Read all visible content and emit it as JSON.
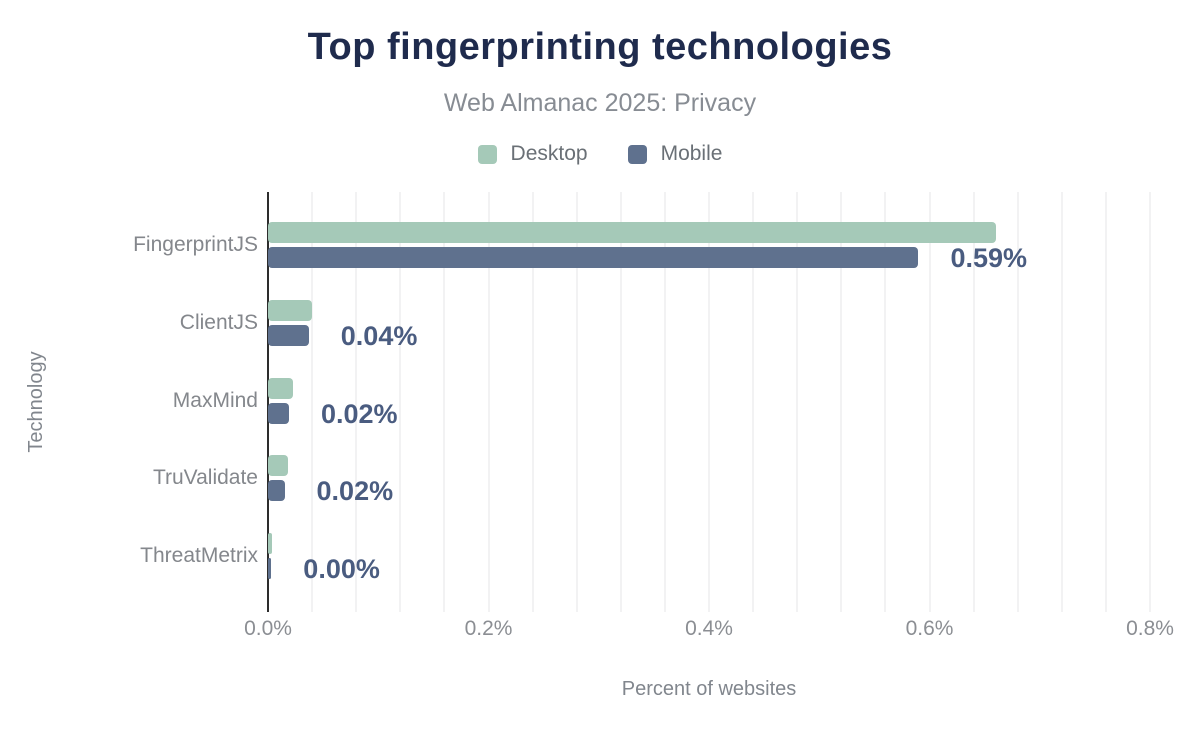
{
  "chart_data": {
    "type": "bar",
    "orientation": "horizontal",
    "title": "Top fingerprinting technologies",
    "subtitle": "Web Almanac 2025: Privacy",
    "xlabel": "Percent of websites",
    "ylabel": "Technology",
    "categories": [
      "FingerprintJS",
      "ClientJS",
      "MaxMind",
      "TruValidate",
      "ThreatMetrix"
    ],
    "series": [
      {
        "name": "Desktop",
        "color": "#a5c9b8",
        "values": [
          0.66,
          0.04,
          0.023,
          0.018,
          0.004
        ]
      },
      {
        "name": "Mobile",
        "color": "#5f718e",
        "values": [
          0.59,
          0.037,
          0.019,
          0.015,
          0.003
        ]
      }
    ],
    "value_labels": [
      "0.59%",
      "0.04%",
      "0.02%",
      "0.02%",
      "0.00%"
    ],
    "xlim": [
      0,
      0.8
    ],
    "xticks": [
      "0.0%",
      "0.2%",
      "0.4%",
      "0.6%",
      "0.8%"
    ],
    "xtick_values": [
      0,
      0.2,
      0.4,
      0.6,
      0.8
    ],
    "grid": true,
    "legend_position": "top",
    "colors": {
      "background": "#ffffff",
      "title": "#1f2b4d",
      "subtitle": "#878c93",
      "legend_text": "#6a7076",
      "category_label": "#84878c",
      "tick_label": "#8b8e93",
      "axis_title": "#81868d",
      "value_label": "#4a5c80",
      "gridline": "#f2f2f3",
      "axis_line": "#2d2d2d"
    }
  }
}
